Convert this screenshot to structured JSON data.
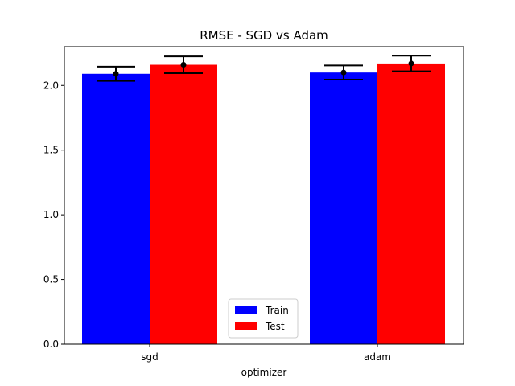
{
  "chart_data": {
    "type": "bar",
    "title": "RMSE - SGD vs Adam",
    "xlabel": "optimizer",
    "ylabel": "",
    "categories": [
      "sgd",
      "adam"
    ],
    "ylim": [
      0,
      2.3
    ],
    "yticks": [
      0.0,
      0.5,
      1.0,
      1.5,
      2.0
    ],
    "ytick_labels": [
      "0.0",
      "0.5",
      "1.0",
      "1.5",
      "2.0"
    ],
    "grid": false,
    "legend_position": "bottom-center",
    "series": [
      {
        "name": "Train",
        "color": "#0000ff",
        "values": [
          2.09,
          2.1
        ],
        "error": [
          0.055,
          0.055
        ]
      },
      {
        "name": "Test",
        "color": "#ff0000",
        "values": [
          2.16,
          2.17
        ],
        "error": [
          0.065,
          0.06
        ]
      }
    ],
    "errorbar_color": "#000000"
  }
}
